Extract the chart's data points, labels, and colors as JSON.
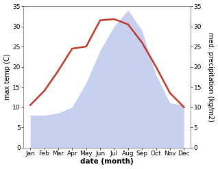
{
  "months": [
    "Jan",
    "Feb",
    "Mar",
    "Apr",
    "May",
    "Jun",
    "Jul",
    "Aug",
    "Sep",
    "Oct",
    "Nov",
    "Dec"
  ],
  "temp": [
    10.5,
    14.0,
    19.0,
    24.5,
    25.0,
    31.5,
    31.8,
    30.5,
    26.0,
    20.0,
    13.5,
    10.0
  ],
  "precip": [
    8.0,
    8.0,
    8.5,
    10.0,
    16.0,
    24.0,
    30.0,
    34.0,
    29.0,
    18.0,
    11.0,
    10.5
  ],
  "temp_color": "#c0392b",
  "precip_fill_color": "#c8d0f0",
  "bg_color": "#ffffff",
  "plot_bg_color": "#ffffff",
  "xlabel": "date (month)",
  "ylabel_left": "max temp (C)",
  "ylabel_right": "med. precipitation (kg/m2)",
  "ylim": [
    0,
    35
  ],
  "yticks": [
    0,
    5,
    10,
    15,
    20,
    25,
    30,
    35
  ],
  "line_width": 1.8,
  "label_fontsize": 6.5,
  "axis_label_fontsize": 7.0,
  "xlabel_fontsize": 7.5
}
